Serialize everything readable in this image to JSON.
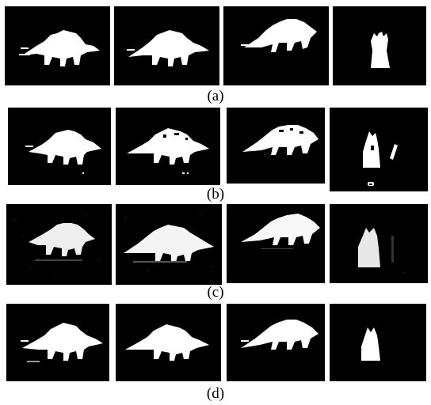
{
  "rows": [
    {
      "caption": "(a)",
      "style": "clean"
    },
    {
      "caption": "(b)",
      "style": "speckle"
    },
    {
      "caption": "(c)",
      "style": "noisy"
    },
    {
      "caption": "(d)",
      "style": "smooth"
    }
  ],
  "colors": {
    "background": "#000000",
    "mask": "#ffffff",
    "noise": "#6a6a6a",
    "page": "#ffffff"
  }
}
